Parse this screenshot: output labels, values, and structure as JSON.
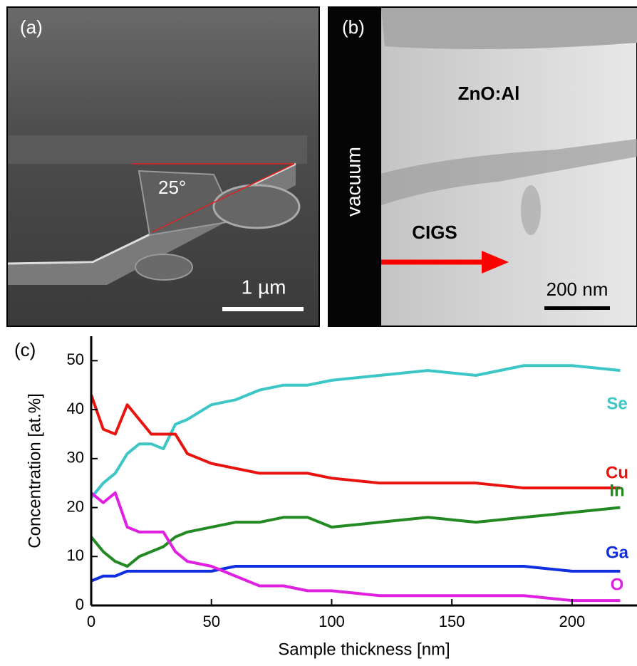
{
  "panels": {
    "a": {
      "label": "(a)",
      "angle": "25°",
      "scale": "1 µm"
    },
    "b": {
      "label": "(b)",
      "layer_top": "ZnO:Al",
      "side": "vacuum",
      "layer_bottom": "CIGS",
      "scale": "200 nm"
    }
  },
  "chart_data": {
    "type": "line",
    "panel_label": "(c)",
    "x_label": "Sample thickness [nm]",
    "y_label": "Concentration [at.%]",
    "x": [
      0,
      5,
      10,
      15,
      20,
      25,
      30,
      35,
      40,
      50,
      60,
      70,
      80,
      90,
      100,
      120,
      140,
      160,
      180,
      200,
      220
    ],
    "series": [
      {
        "name": "Se",
        "color": "#3cc6c6",
        "values": [
          22,
          25,
          27,
          31,
          33,
          33,
          32,
          37,
          38,
          41,
          42,
          44,
          45,
          45,
          46,
          47,
          48,
          47,
          49,
          49,
          48
        ]
      },
      {
        "name": "Cu",
        "color": "#e8120f",
        "values": [
          43,
          36,
          35,
          41,
          38,
          35,
          35,
          35,
          31,
          29,
          28,
          27,
          27,
          27,
          26,
          25,
          25,
          25,
          24,
          24,
          24
        ]
      },
      {
        "name": "In",
        "color": "#238a23",
        "values": [
          14,
          11,
          9,
          8,
          10,
          11,
          12,
          14,
          15,
          16,
          17,
          17,
          18,
          18,
          16,
          17,
          18,
          17,
          18,
          19,
          20
        ]
      },
      {
        "name": "Ga",
        "color": "#1030e0",
        "values": [
          5,
          6,
          6,
          7,
          7,
          7,
          7,
          7,
          7,
          7,
          8,
          8,
          8,
          8,
          8,
          8,
          8,
          8,
          8,
          7,
          7
        ]
      },
      {
        "name": "O",
        "color": "#e020e0",
        "values": [
          23,
          21,
          23,
          16,
          15,
          15,
          15,
          11,
          9,
          8,
          6,
          4,
          4,
          3,
          3,
          2,
          2,
          2,
          2,
          1,
          1
        ]
      }
    ],
    "xlim": [
      0,
      227
    ],
    "ylim": [
      0,
      55
    ],
    "xticks": [
      0,
      50,
      100,
      150,
      200
    ],
    "yticks": [
      0,
      10,
      20,
      30,
      40,
      50
    ]
  }
}
